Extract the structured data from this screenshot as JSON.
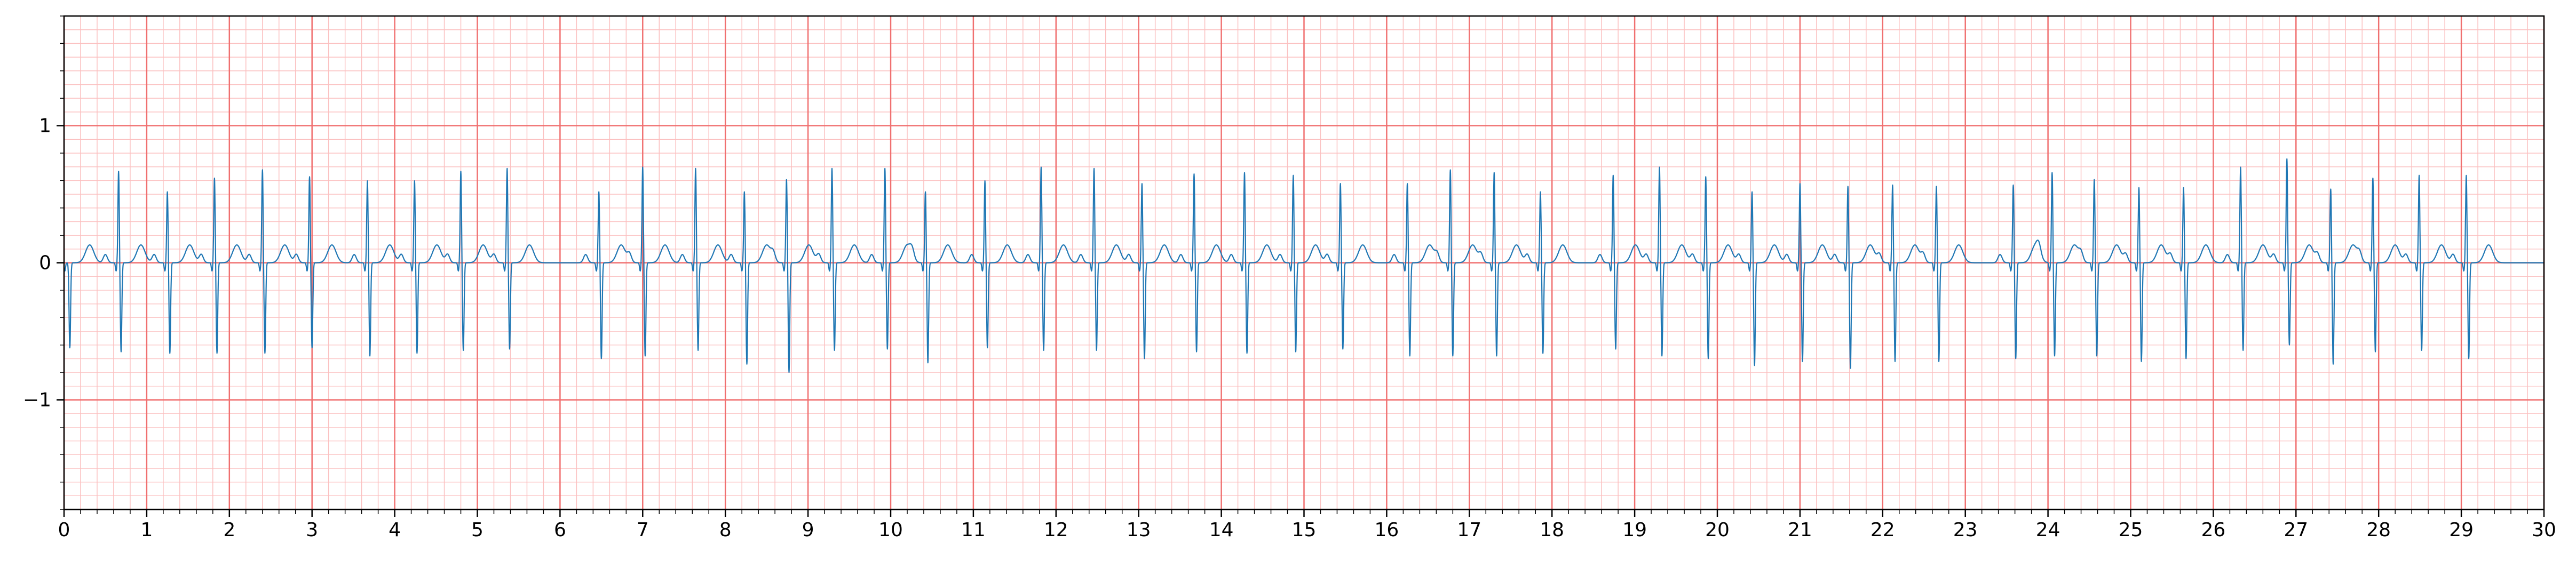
{
  "chart_data": {
    "type": "line",
    "title": "",
    "xlabel": "",
    "ylabel": "",
    "xlim": [
      0,
      30
    ],
    "ylim": [
      -1.8,
      1.8
    ],
    "x_ticks": [
      "0",
      "1",
      "2",
      "3",
      "4",
      "5",
      "6",
      "7",
      "8",
      "9",
      "10",
      "11",
      "12",
      "13",
      "14",
      "15",
      "16",
      "17",
      "18",
      "19",
      "20",
      "21",
      "22",
      "23",
      "24",
      "25",
      "26",
      "27",
      "28",
      "29",
      "30"
    ],
    "y_ticks": [
      "−1",
      "0",
      "1"
    ],
    "grid": true,
    "grid_major_x_step": 1,
    "grid_major_y_step": 1,
    "grid_minor_x_step": 0.2,
    "grid_minor_y_step": 0.1,
    "colors": {
      "line": "#1f77b4",
      "grid_major": "#f07070",
      "grid_minor": "#fbc0c0",
      "axis": "#000000"
    },
    "series": [
      {
        "name": "",
        "peak_amplitude_note": "",
        "beats": [
          [
            0.04,
            0.0,
            -0.62
          ],
          [
            0.66,
            0.67,
            -0.65
          ],
          [
            1.25,
            0.52,
            -0.66
          ],
          [
            1.82,
            0.62,
            -0.66
          ],
          [
            2.4,
            0.68,
            -0.66
          ],
          [
            2.97,
            0.63,
            -0.62
          ],
          [
            3.67,
            0.6,
            -0.68
          ],
          [
            4.24,
            0.6,
            -0.66
          ],
          [
            4.8,
            0.67,
            -0.64
          ],
          [
            5.36,
            0.69,
            -0.63
          ],
          [
            6.47,
            0.52,
            -0.7
          ],
          [
            7.0,
            0.7,
            -0.68
          ],
          [
            7.64,
            0.69,
            -0.64
          ],
          [
            8.23,
            0.52,
            -0.74
          ],
          [
            8.74,
            0.61,
            -0.8
          ],
          [
            9.29,
            0.69,
            -0.64
          ],
          [
            9.93,
            0.69,
            -0.63
          ],
          [
            10.42,
            0.52,
            -0.73
          ],
          [
            11.14,
            0.6,
            -0.62
          ],
          [
            11.82,
            0.7,
            -0.64
          ],
          [
            12.46,
            0.69,
            -0.64
          ],
          [
            13.04,
            0.58,
            -0.7
          ],
          [
            13.67,
            0.65,
            -0.65
          ],
          [
            14.28,
            0.66,
            -0.66
          ],
          [
            14.87,
            0.64,
            -0.65
          ],
          [
            15.44,
            0.58,
            -0.63
          ],
          [
            16.25,
            0.58,
            -0.68
          ],
          [
            16.77,
            0.68,
            -0.68
          ],
          [
            17.3,
            0.66,
            -0.68
          ],
          [
            17.86,
            0.52,
            -0.66
          ],
          [
            18.74,
            0.64,
            -0.63
          ],
          [
            19.3,
            0.7,
            -0.68
          ],
          [
            19.86,
            0.63,
            -0.7
          ],
          [
            20.42,
            0.52,
            -0.75
          ],
          [
            21.0,
            0.58,
            -0.72
          ],
          [
            21.58,
            0.56,
            -0.77
          ],
          [
            22.12,
            0.57,
            -0.72
          ],
          [
            22.65,
            0.56,
            -0.72
          ],
          [
            23.58,
            0.57,
            -0.7
          ],
          [
            24.05,
            0.66,
            -0.68
          ],
          [
            24.56,
            0.61,
            -0.68
          ],
          [
            25.1,
            0.55,
            -0.72
          ],
          [
            25.64,
            0.55,
            -0.7
          ],
          [
            26.33,
            0.7,
            -0.64
          ],
          [
            26.89,
            0.76,
            -0.6
          ],
          [
            27.42,
            0.54,
            -0.74
          ],
          [
            27.93,
            0.62,
            -0.65
          ],
          [
            28.49,
            0.64,
            -0.64
          ],
          [
            29.06,
            0.64,
            -0.7
          ]
        ]
      }
    ]
  }
}
